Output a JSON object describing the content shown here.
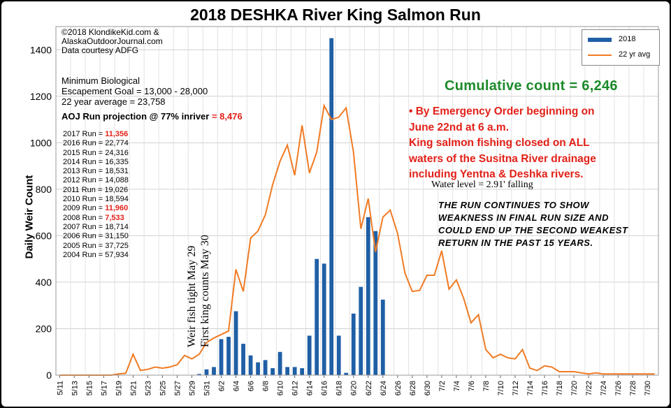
{
  "title": "2018 DESHKA River King Salmon Run",
  "copyright_lines": [
    "©2018  KlondikeKid.com &",
    "AlaskaOutdoorJournal.com",
    "Data courtesy ADFG"
  ],
  "goal_lines": [
    "Minimum Biological",
    "Escapement Goal = 13,000 - 28,000",
    "22 year average = 23,758"
  ],
  "projection": {
    "label": "AOJ Run projection @ 77% inriver",
    "value": "= 8,476"
  },
  "past_runs": [
    {
      "label": "2017 Run =",
      "value": "11,356",
      "highlight": true
    },
    {
      "label": "2016 Run =",
      "value": "22,774",
      "highlight": false
    },
    {
      "label": "2015 Run =",
      "value": "24,316",
      "highlight": false
    },
    {
      "label": "2014 Run =",
      "value": "16,335",
      "highlight": false
    },
    {
      "label": "2013 Run =",
      "value": "18,531",
      "highlight": false
    },
    {
      "label": "2012 Run =",
      "value": "14,088",
      "highlight": false
    },
    {
      "label": "2011 Run =",
      "value": "19,026",
      "highlight": false
    },
    {
      "label": "2010 Run =",
      "value": "18,594",
      "highlight": false
    },
    {
      "label": "2009 Run =",
      "value": "11,960",
      "highlight": true
    },
    {
      "label": "2008 Run =",
      "value": "7,533",
      "highlight": true
    },
    {
      "label": "2007 Run =",
      "value": "18,714",
      "highlight": false
    },
    {
      "label": "2006 Run =",
      "value": "31,150",
      "highlight": false
    },
    {
      "label": "2005 Run =",
      "value": "37,725",
      "highlight": false
    },
    {
      "label": "2004 Run =",
      "value": "57,934",
      "highlight": false
    }
  ],
  "cumulative": "Cumulative count = 6,246",
  "emergency_lines": [
    "• By Emergency Order beginning on",
    "June 22nd at 6 a.m.",
    "King salmon fishing closed on ALL",
    "waters of the Susitna River drainage",
    "including Yentna & Deshka rivers."
  ],
  "water_level": "Water level = 2.91' falling",
  "comment_lines": [
    "The run continues to show",
    "weakness in final run size and",
    "could end up the second weakest",
    "return in the past 15 years."
  ],
  "annotations": [
    "Weir fish tight May 29",
    "First king counts May 30"
  ],
  "colors": {
    "bar": "#1f5fa6",
    "line": "#f07b24",
    "accent_red": "#e32119",
    "accent_green": "#1c8a2a"
  },
  "chart_data": {
    "type": "bar",
    "ylabel": "Daily  Weir Count",
    "ylim": [
      0,
      1500
    ],
    "yticks": [
      0,
      200,
      400,
      600,
      800,
      1000,
      1200,
      1400
    ],
    "x_tick_labels": [
      "5/11",
      "5/13",
      "5/15",
      "5/17",
      "5/19",
      "5/21",
      "5/23",
      "5/25",
      "5/27",
      "5/29",
      "5/31",
      "6/2",
      "6/4",
      "6/6",
      "6/8",
      "6/10",
      "6/12",
      "6/14",
      "6/16",
      "6/18",
      "6/20",
      "6/22",
      "6/24",
      "6/26",
      "6/28",
      "6/30",
      "7/2",
      "7/4",
      "7/6",
      "7/8",
      "7/10",
      "7/12",
      "7/14",
      "7/16",
      "7/18",
      "7/20",
      "7/22",
      "7/24",
      "7/26",
      "7/28",
      "7/30"
    ],
    "legend": [
      "2018",
      "22 yr avg"
    ],
    "legend_position": "top-right",
    "series": [
      {
        "name": "2018",
        "type": "bar",
        "start": "5/30",
        "values": [
          5,
          25,
          35,
          155,
          165,
          275,
          135,
          85,
          55,
          65,
          30,
          100,
          35,
          35,
          30,
          170,
          500,
          480,
          1450,
          170,
          10,
          265,
          380,
          680,
          620,
          325
        ]
      },
      {
        "name": "22 yr avg",
        "type": "line",
        "start": "5/11",
        "values": [
          0,
          0,
          0,
          0,
          0,
          0,
          0,
          0,
          5,
          8,
          90,
          20,
          25,
          35,
          30,
          35,
          45,
          85,
          70,
          90,
          140,
          160,
          175,
          190,
          455,
          360,
          590,
          620,
          690,
          820,
          920,
          990,
          860,
          1075,
          870,
          960,
          1160,
          1100,
          1110,
          1150,
          960,
          630,
          760,
          530,
          680,
          710,
          610,
          440,
          360,
          365,
          430,
          430,
          535,
          370,
          410,
          330,
          225,
          260,
          110,
          75,
          90,
          75,
          70,
          110,
          30,
          20,
          40,
          35,
          15,
          15,
          15,
          10,
          5,
          10,
          5,
          5,
          5,
          5,
          5,
          5,
          5,
          5
        ]
      }
    ]
  }
}
